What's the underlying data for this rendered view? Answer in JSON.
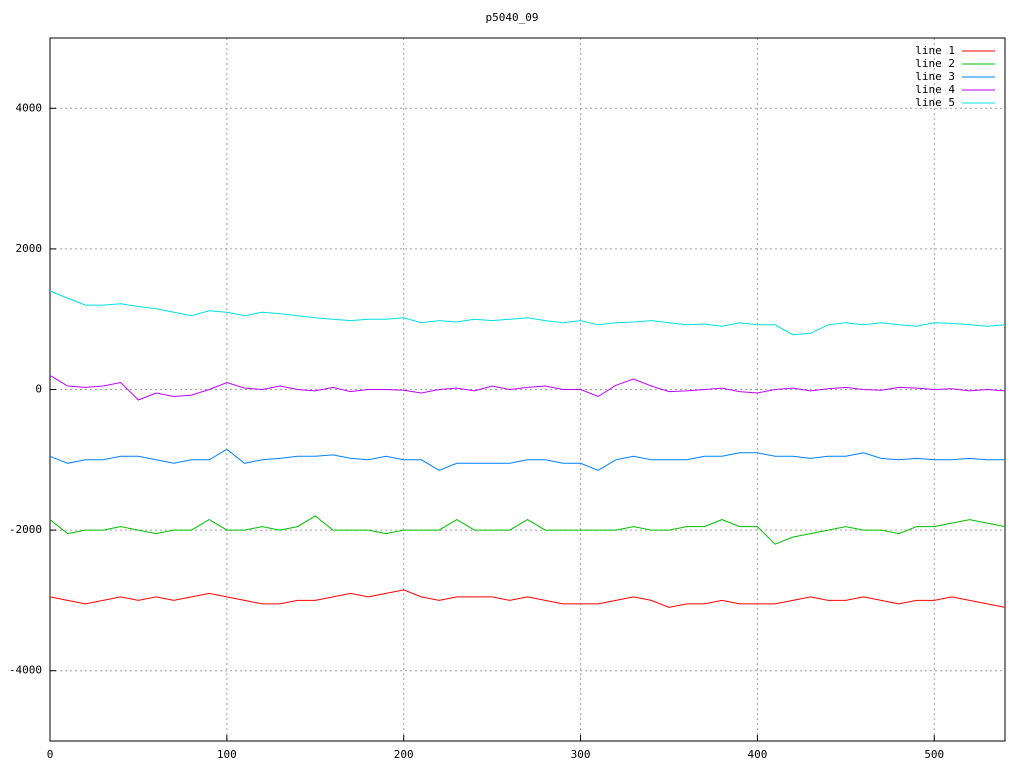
{
  "chart_data": {
    "type": "line",
    "title": "p5040_09",
    "x": [
      0,
      10,
      20,
      30,
      40,
      50,
      60,
      70,
      80,
      90,
      100,
      110,
      120,
      130,
      140,
      150,
      160,
      170,
      180,
      190,
      200,
      210,
      220,
      230,
      240,
      250,
      260,
      270,
      280,
      290,
      300,
      310,
      320,
      330,
      340,
      350,
      360,
      370,
      380,
      390,
      400,
      410,
      420,
      430,
      440,
      450,
      460,
      470,
      480,
      490,
      500,
      510,
      520,
      530,
      540
    ],
    "series": [
      {
        "name": "line 1",
        "color": "#ff0000",
        "values": [
          -2950,
          -3000,
          -3050,
          -3000,
          -2950,
          -3000,
          -2950,
          -3000,
          -2950,
          -2900,
          -2950,
          -3000,
          -3050,
          -3050,
          -3000,
          -3000,
          -2950,
          -2900,
          -2950,
          -2900,
          -2850,
          -2950,
          -3000,
          -2950,
          -2950,
          -2950,
          -3000,
          -2950,
          -3000,
          -3050,
          -3050,
          -3050,
          -3000,
          -2950,
          -3000,
          -3100,
          -3050,
          -3050,
          -3000,
          -3050,
          -3050,
          -3050,
          -3000,
          -2950,
          -3000,
          -3000,
          -2950,
          -3000,
          -3050,
          -3000,
          -3000,
          -2950,
          -3000,
          -3050,
          -3100
        ]
      },
      {
        "name": "line 2",
        "color": "#00c000",
        "values": [
          -1850,
          -2050,
          -2000,
          -2000,
          -1950,
          -2000,
          -2050,
          -2000,
          -2000,
          -1850,
          -2000,
          -2000,
          -1950,
          -2000,
          -1950,
          -1800,
          -2000,
          -2000,
          -2000,
          -2050,
          -2000,
          -2000,
          -2000,
          -1850,
          -2000,
          -2000,
          -2000,
          -1850,
          -2000,
          -2000,
          -2000,
          -2000,
          -2000,
          -1950,
          -2000,
          -2000,
          -1950,
          -1950,
          -1850,
          -1950,
          -1950,
          -2200,
          -2100,
          -2050,
          -2000,
          -1950,
          -2000,
          -2000,
          -2050,
          -1950,
          -1950,
          -1900,
          -1850,
          -1900,
          -1950
        ]
      },
      {
        "name": "line 3",
        "color": "#0080ff",
        "values": [
          -950,
          -1050,
          -1000,
          -1000,
          -950,
          -950,
          -1000,
          -1050,
          -1000,
          -1000,
          -850,
          -1050,
          -1000,
          -980,
          -950,
          -950,
          -930,
          -980,
          -1000,
          -950,
          -1000,
          -1000,
          -1150,
          -1050,
          -1050,
          -1050,
          -1050,
          -1000,
          -1000,
          -1050,
          -1050,
          -1150,
          -1000,
          -950,
          -1000,
          -1000,
          -1000,
          -950,
          -950,
          -900,
          -900,
          -950,
          -950,
          -980,
          -950,
          -950,
          -900,
          -980,
          -1000,
          -980,
          -1000,
          -1000,
          -980,
          -1000,
          -1000
        ]
      },
      {
        "name": "line 4",
        "color": "#c000ff",
        "values": [
          200,
          50,
          30,
          50,
          100,
          -150,
          -50,
          -100,
          -80,
          0,
          100,
          20,
          0,
          50,
          0,
          -20,
          30,
          -30,
          0,
          0,
          -10,
          -50,
          0,
          20,
          -20,
          50,
          0,
          30,
          50,
          0,
          0,
          -100,
          60,
          150,
          50,
          -30,
          -20,
          0,
          20,
          -30,
          -50,
          0,
          20,
          -20,
          10,
          30,
          0,
          -10,
          30,
          20,
          0,
          10,
          -20,
          0,
          -20
        ]
      },
      {
        "name": "line 5",
        "color": "#00e0e0",
        "values": [
          1400,
          1300,
          1200,
          1200,
          1220,
          1180,
          1150,
          1100,
          1050,
          1120,
          1100,
          1050,
          1100,
          1080,
          1050,
          1020,
          1000,
          980,
          1000,
          1000,
          1020,
          950,
          980,
          960,
          1000,
          980,
          1000,
          1020,
          980,
          950,
          980,
          920,
          950,
          960,
          980,
          950,
          920,
          930,
          900,
          950,
          920,
          920,
          780,
          800,
          920,
          950,
          920,
          950,
          920,
          900,
          950,
          940,
          920,
          900,
          920
        ]
      }
    ],
    "xlim": [
      0,
      540
    ],
    "ylim": [
      -5000,
      5000
    ],
    "xticks": [
      0,
      100,
      200,
      300,
      400,
      500
    ],
    "yticks": [
      -4000,
      -2000,
      0,
      2000,
      4000
    ],
    "grid": true,
    "legend": "top-right"
  }
}
